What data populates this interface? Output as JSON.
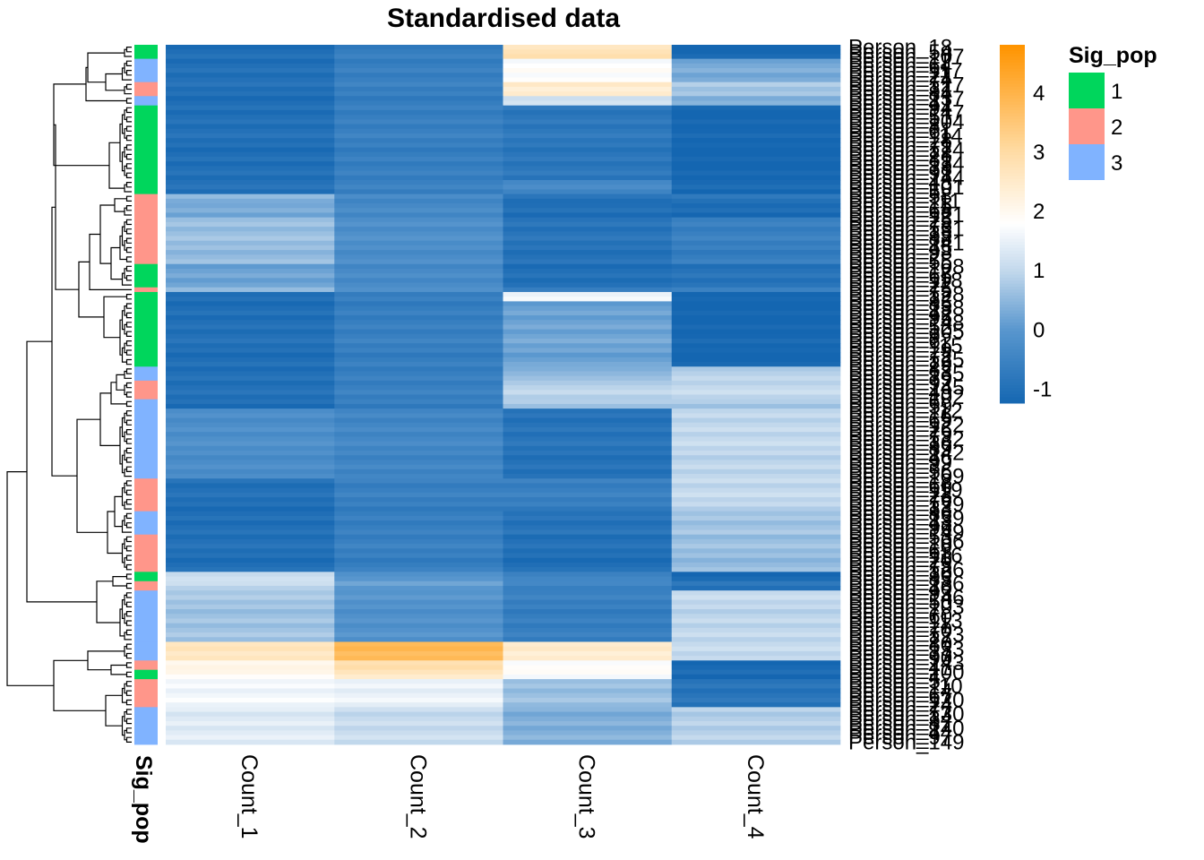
{
  "chart_data": {
    "type": "heatmap",
    "title": "Standardised data",
    "columns": [
      "Count_1",
      "Count_2",
      "Count_3",
      "Count_4"
    ],
    "annotation_name": "Sig_pop",
    "row_label_prefix": "Person_",
    "row_labels_visible": [
      "Person_18",
      "Person_149"
    ],
    "n_rows": 150,
    "row_blocks": [
      {
        "rows": 3,
        "group": "1",
        "values": [
          -1.0,
          -0.6,
          2.8,
          -1.2
        ]
      },
      {
        "rows": 5,
        "group": "3",
        "values": [
          -1.0,
          -0.6,
          1.8,
          0.3
        ]
      },
      {
        "rows": 3,
        "group": "2",
        "values": [
          -1.0,
          -0.6,
          2.4,
          0.7
        ]
      },
      {
        "rows": 2,
        "group": "3",
        "values": [
          -1.0,
          -0.6,
          1.3,
          0.5
        ]
      },
      {
        "rows": 16,
        "group": "1",
        "values": [
          -1.0,
          -0.6,
          -0.8,
          -1.25
        ]
      },
      {
        "rows": 3,
        "group": "1",
        "values": [
          -1.0,
          -0.6,
          -0.4,
          -1.2
        ]
      },
      {
        "rows": 2,
        "group": "2",
        "values": [
          0.5,
          -0.3,
          -0.9,
          -0.8
        ]
      },
      {
        "rows": 3,
        "group": "2",
        "values": [
          0.3,
          -0.3,
          -1.0,
          -1.1
        ]
      },
      {
        "rows": 10,
        "group": "2",
        "values": [
          0.6,
          -0.2,
          -0.9,
          -0.6
        ]
      },
      {
        "rows": 5,
        "group": "1",
        "values": [
          0.2,
          -0.3,
          -1.0,
          -0.9
        ]
      },
      {
        "rows": 1,
        "group": "2",
        "values": [
          0.4,
          -0.3,
          -0.8,
          -0.7
        ]
      },
      {
        "rows": 2,
        "group": "1",
        "values": [
          -1.0,
          -0.6,
          1.6,
          -1.25
        ]
      },
      {
        "rows": 14,
        "group": "1",
        "values": [
          -1.0,
          -0.6,
          0.2,
          -1.25
        ]
      },
      {
        "rows": 3,
        "group": "3",
        "values": [
          -1.0,
          -0.6,
          0.5,
          0.9
        ]
      },
      {
        "rows": 4,
        "group": "2",
        "values": [
          -1.0,
          -0.6,
          0.9,
          1.0
        ]
      },
      {
        "rows": 2,
        "group": "3",
        "values": [
          -1.0,
          -0.6,
          0.8,
          0.8
        ]
      },
      {
        "rows": 15,
        "group": "3",
        "values": [
          -0.2,
          -0.4,
          -0.9,
          1.0
        ]
      },
      {
        "rows": 7,
        "group": "2",
        "values": [
          -1.0,
          -0.6,
          -0.6,
          1.0
        ]
      },
      {
        "rows": 5,
        "group": "3",
        "values": [
          -1.0,
          -0.6,
          -0.9,
          0.7
        ]
      },
      {
        "rows": 8,
        "group": "2",
        "values": [
          -1.0,
          -0.6,
          -1.0,
          0.6
        ]
      },
      {
        "rows": 2,
        "group": "1",
        "values": [
          1.2,
          0.0,
          -0.4,
          -1.1
        ]
      },
      {
        "rows": 2,
        "group": "2",
        "values": [
          1.0,
          0.1,
          -0.5,
          -0.9
        ]
      },
      {
        "rows": 11,
        "group": "3",
        "values": [
          0.7,
          -0.1,
          -0.6,
          1.0
        ]
      },
      {
        "rows": 4,
        "group": "3",
        "values": [
          2.6,
          3.8,
          2.4,
          1.0
        ]
      },
      {
        "rows": 2,
        "group": "2",
        "values": [
          2.2,
          3.0,
          1.9,
          -1.1
        ]
      },
      {
        "rows": 2,
        "group": "1",
        "values": [
          2.0,
          2.6,
          1.8,
          -1.1
        ]
      },
      {
        "rows": 6,
        "group": "2",
        "values": [
          1.6,
          1.5,
          0.6,
          -0.9
        ]
      },
      {
        "rows": 8,
        "group": "3",
        "values": [
          1.4,
          1.1,
          0.4,
          0.9
        ]
      }
    ],
    "group_colors": {
      "1": "#00D65C",
      "2": "#FF968A",
      "3": "#80B3FF"
    },
    "color_scale": {
      "min": -1.25,
      "max": 4.8,
      "stops": [
        {
          "v": -1.25,
          "c": "#1466B1"
        },
        {
          "v": 0,
          "c": "#5896CE"
        },
        {
          "v": 1,
          "c": "#C2D8EC"
        },
        {
          "v": 1.8,
          "c": "#FFFFFF"
        },
        {
          "v": 3,
          "c": "#FFDCA6"
        },
        {
          "v": 4.8,
          "c": "#FF9400"
        }
      ]
    },
    "colorbar_ticks": [
      "-1",
      "0",
      "1",
      "2",
      "3",
      "4"
    ],
    "legend": {
      "title": "Sig_pop",
      "items": [
        "1",
        "2",
        "3"
      ]
    }
  }
}
